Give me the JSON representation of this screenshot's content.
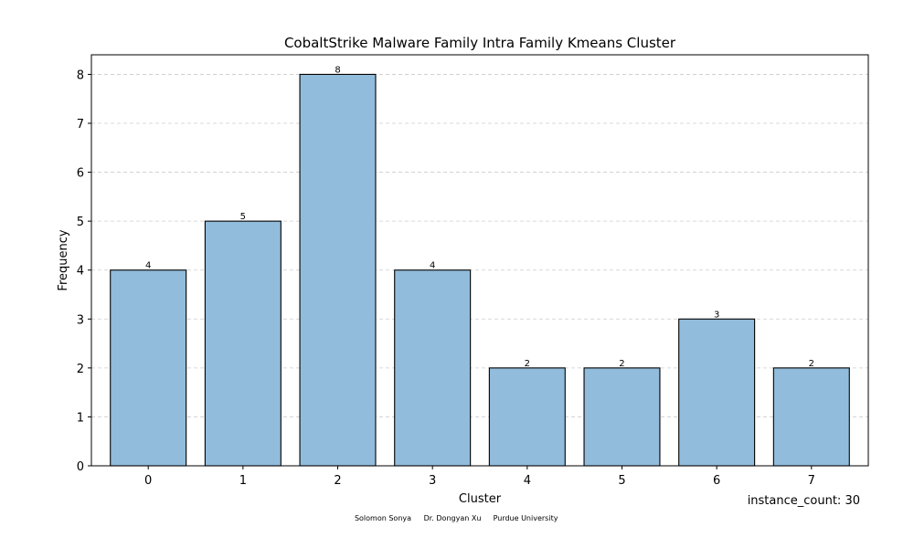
{
  "chart_data": {
    "type": "bar",
    "title": "CobaltStrike Malware Family Intra Family Kmeans Cluster",
    "xlabel": "Cluster",
    "ylabel": "Frequency",
    "categories": [
      "0",
      "1",
      "2",
      "3",
      "4",
      "5",
      "6",
      "7"
    ],
    "values": [
      4,
      5,
      8,
      4,
      2,
      2,
      3,
      2
    ],
    "ylim": [
      0,
      8.4
    ],
    "yticks": [
      0,
      1,
      2,
      3,
      4,
      5,
      6,
      7,
      8
    ],
    "grid": "y-dashed",
    "bar_color": "#92bcdc",
    "bar_edge_color": "#000000",
    "grid_color": "#cccccc"
  },
  "annotations": {
    "instance_count": "instance_count: 30",
    "credits": [
      "Solomon Sonya",
      "Dr. Dongyan Xu",
      "Purdue University"
    ]
  }
}
